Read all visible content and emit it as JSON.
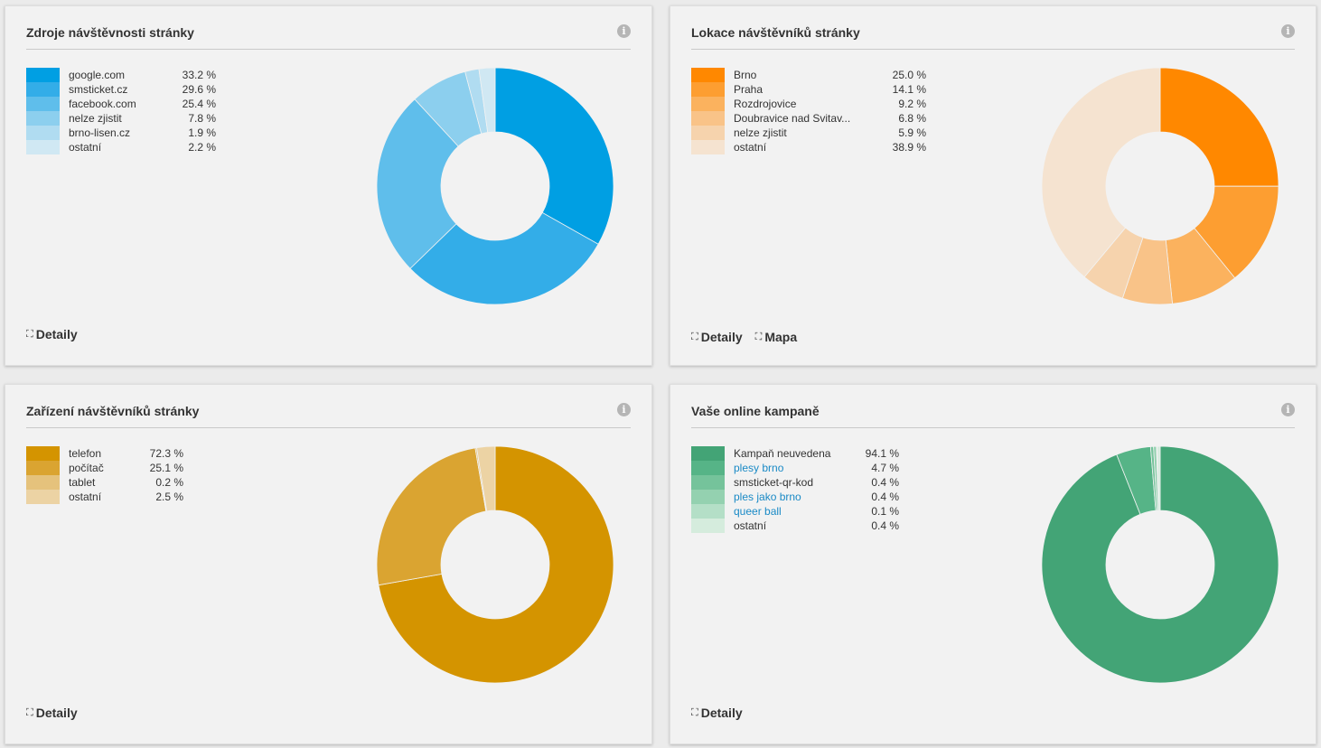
{
  "panels": [
    {
      "title": "Zdroje návštěvnosti stránky",
      "info_icon": "info-icon",
      "links": [
        {
          "label": "Detaily",
          "icon": "expand-icon"
        }
      ],
      "legend": [
        {
          "label": "google.com",
          "pct": "33.2 %",
          "color": "#009fe3"
        },
        {
          "label": "smsticket.cz",
          "pct": "29.6 %",
          "color": "#33ade8"
        },
        {
          "label": "facebook.com",
          "pct": "25.4 %",
          "color": "#5fbeeb"
        },
        {
          "label": "nelze zjistit",
          "pct": "7.8 %",
          "color": "#8ccfee"
        },
        {
          "label": "brno-lisen.cz",
          "pct": "1.9 %",
          "color": "#b0dcf1"
        },
        {
          "label": "ostatní",
          "pct": "2.2 %",
          "color": "#d0e8f3"
        }
      ]
    },
    {
      "title": "Lokace návštěvníků stránky",
      "info_icon": "info-icon",
      "links": [
        {
          "label": "Detaily",
          "icon": "expand-icon"
        },
        {
          "label": "Mapa",
          "icon": "expand-icon"
        }
      ],
      "legend": [
        {
          "label": "Brno",
          "pct": "25.0 %",
          "color": "#ff8800"
        },
        {
          "label": "Praha",
          "pct": "14.1 %",
          "color": "#fd9e31"
        },
        {
          "label": "Rozdrojovice",
          "pct": "9.2 %",
          "color": "#fbb25e"
        },
        {
          "label": "Doubravice nad Svitav...",
          "pct": "6.8 %",
          "color": "#f9c388"
        },
        {
          "label": "nelze zjistit",
          "pct": "5.9 %",
          "color": "#f6d3ad"
        },
        {
          "label": "ostatní",
          "pct": "38.9 %",
          "color": "#f5e3d0"
        }
      ]
    },
    {
      "title": "Zařízení návštěvníků stránky",
      "info_icon": "info-icon",
      "links": [
        {
          "label": "Detaily",
          "icon": "expand-icon"
        }
      ],
      "legend": [
        {
          "label": "telefon",
          "pct": "72.3 %",
          "color": "#d49400"
        },
        {
          "label": "počítač",
          "pct": "25.1 %",
          "color": "#daa431"
        },
        {
          "label": "tablet",
          "pct": "0.2 %",
          "color": "#e5c27c"
        },
        {
          "label": "ostatní",
          "pct": "2.5 %",
          "color": "#ecd3a4"
        }
      ]
    },
    {
      "title": "Vaše online kampaně",
      "info_icon": "info-icon",
      "links": [
        {
          "label": "Detaily",
          "icon": "expand-icon"
        }
      ],
      "legend": [
        {
          "label": "Kampaň neuvedena",
          "pct": "94.1 %",
          "color": "#43a476",
          "link": false
        },
        {
          "label": "plesy brno",
          "pct": "4.7 %",
          "color": "#56b487",
          "link": true
        },
        {
          "label": "smsticket-qr-kod",
          "pct": "0.4 %",
          "color": "#75c39b",
          "link": false
        },
        {
          "label": "ples jako brno",
          "pct": "0.4 %",
          "color": "#94d1b0",
          "link": true
        },
        {
          "label": "queer ball",
          "pct": "0.1 %",
          "color": "#b4dfc7",
          "link": true
        },
        {
          "label": "ostatní",
          "pct": "0.4 %",
          "color": "#d5ecdd",
          "link": false
        }
      ]
    }
  ],
  "chart_data": [
    {
      "type": "pie",
      "title": "Zdroje návštěvnosti stránky",
      "categories": [
        "google.com",
        "smsticket.cz",
        "facebook.com",
        "nelze zjistit",
        "brno-lisen.cz",
        "ostatní"
      ],
      "values": [
        33.2,
        29.6,
        25.4,
        7.8,
        1.9,
        2.2
      ],
      "unit": "%"
    },
    {
      "type": "pie",
      "title": "Lokace návštěvníků stránky",
      "categories": [
        "Brno",
        "Praha",
        "Rozdrojovice",
        "Doubravice nad Svitav...",
        "nelze zjistit",
        "ostatní"
      ],
      "values": [
        25.0,
        14.1,
        9.2,
        6.8,
        5.9,
        38.9
      ],
      "unit": "%"
    },
    {
      "type": "pie",
      "title": "Zařízení návštěvníků stránky",
      "categories": [
        "telefon",
        "počítač",
        "tablet",
        "ostatní"
      ],
      "values": [
        72.3,
        25.1,
        0.2,
        2.5
      ],
      "unit": "%"
    },
    {
      "type": "pie",
      "title": "Vaše online kampaně",
      "categories": [
        "Kampaň neuvedena",
        "plesy brno",
        "smsticket-qr-kod",
        "ples jako brno",
        "queer ball",
        "ostatní"
      ],
      "values": [
        94.1,
        4.7,
        0.4,
        0.4,
        0.1,
        0.4
      ],
      "unit": "%"
    }
  ]
}
